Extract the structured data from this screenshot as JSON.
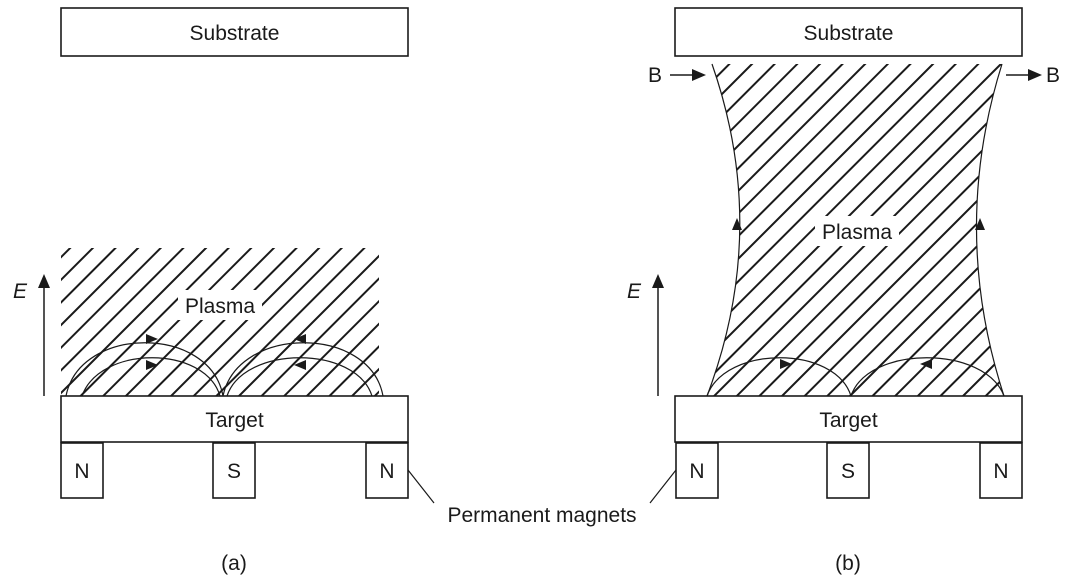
{
  "panel_a": {
    "substrate": "Substrate",
    "plasma": "Plasma",
    "target": "Target",
    "field": "E",
    "magnets": [
      "N",
      "S",
      "N"
    ],
    "caption": "(a)"
  },
  "panel_b": {
    "substrate": "Substrate",
    "plasma": "Plasma",
    "target": "Target",
    "field": "E",
    "b_left": "B",
    "b_right": "B",
    "magnets": [
      "N",
      "S",
      "N"
    ],
    "caption": "(b)"
  },
  "shared": {
    "magnets_label": "Permanent magnets"
  }
}
